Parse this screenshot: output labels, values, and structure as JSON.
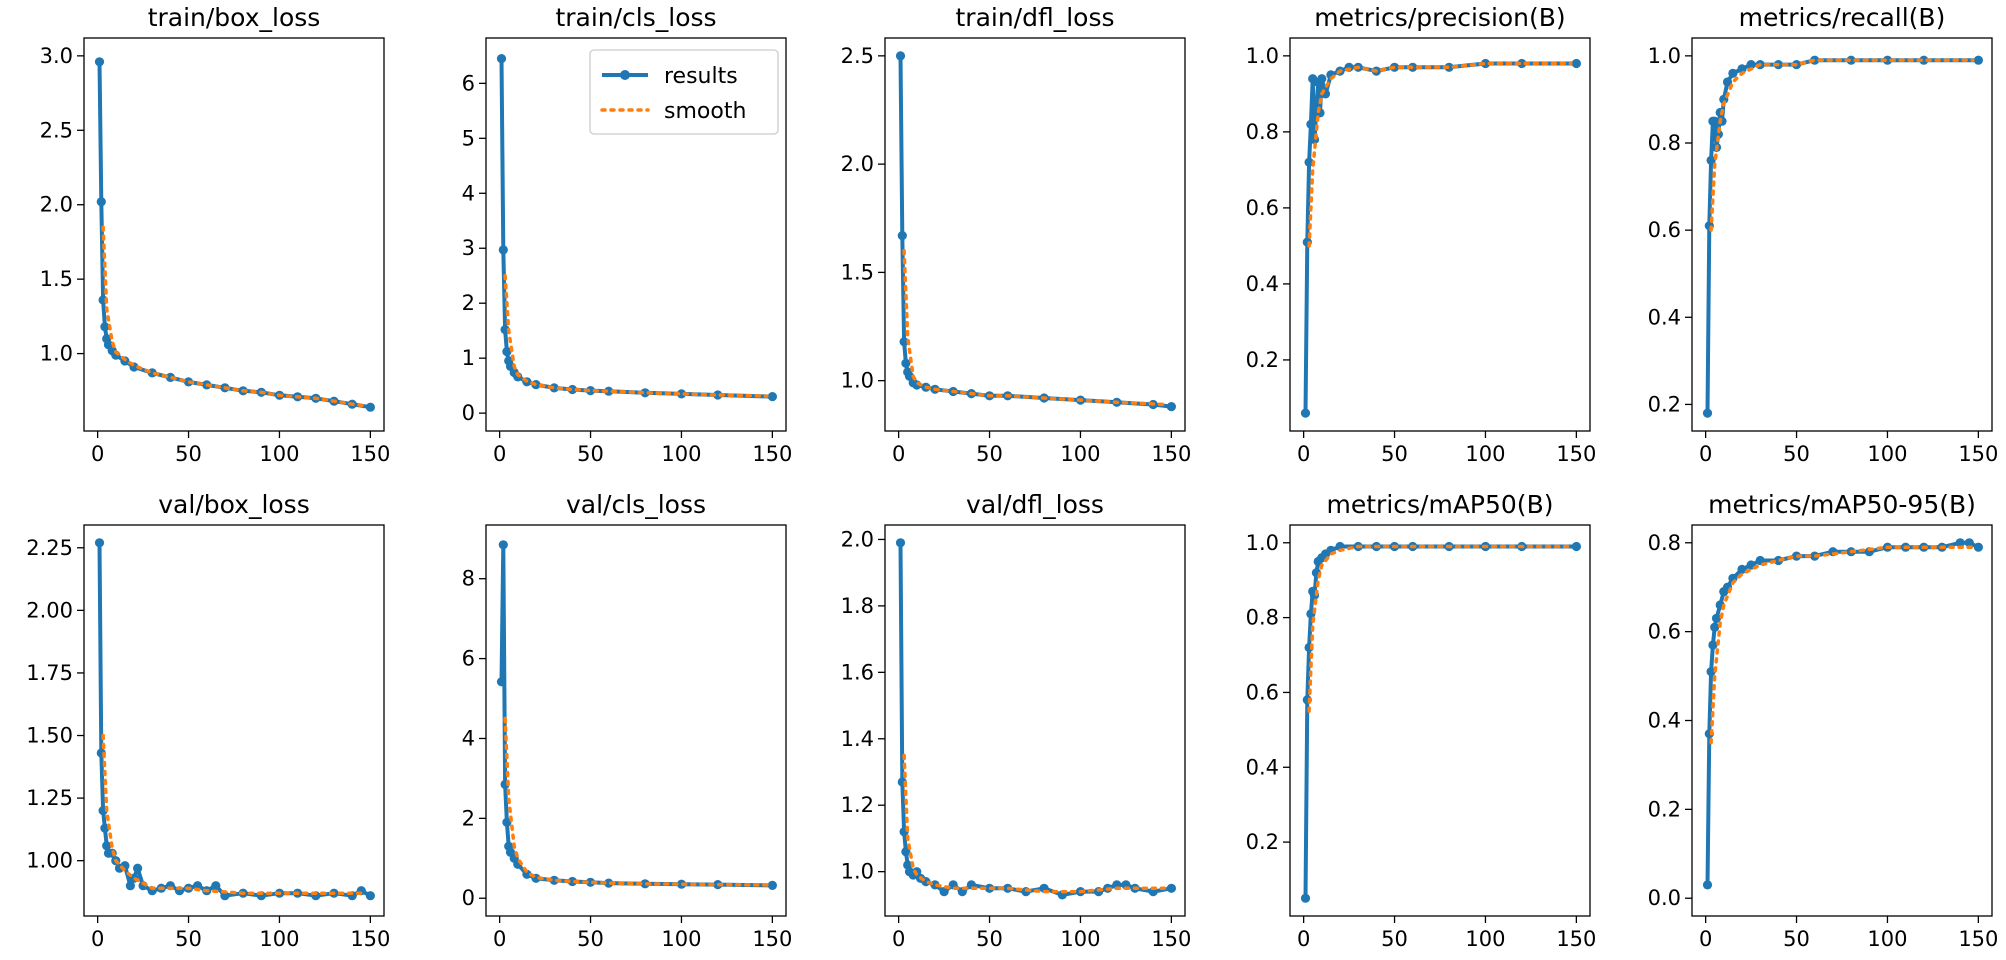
{
  "legend": {
    "entries": [
      {
        "label": "results",
        "color": "#1f77b4",
        "style": "line-with-markers"
      },
      {
        "label": "smooth",
        "color": "#ff7f0e",
        "style": "dotted"
      }
    ],
    "placement": "upper-right of train/cls_loss panel"
  },
  "chart_data": [
    {
      "type": "line",
      "title": "train/box_loss",
      "xlim": [
        0,
        150
      ],
      "ylim": [
        0.6,
        3.0
      ],
      "xticks": [
        0,
        50,
        100,
        150
      ],
      "yticks": [
        1.0,
        1.5,
        2.0,
        2.5,
        3.0
      ],
      "ytick_labels": [
        "1.0",
        "1.5",
        "2.0",
        "2.5",
        "3.0"
      ],
      "series": [
        {
          "name": "results",
          "x": [
            1,
            2,
            3,
            4,
            5,
            6,
            8,
            10,
            15,
            20,
            30,
            40,
            50,
            60,
            70,
            80,
            90,
            100,
            110,
            120,
            130,
            140,
            150
          ],
          "y": [
            2.96,
            2.02,
            1.36,
            1.18,
            1.1,
            1.06,
            1.02,
            0.99,
            0.95,
            0.91,
            0.87,
            0.84,
            0.81,
            0.79,
            0.77,
            0.75,
            0.74,
            0.72,
            0.71,
            0.7,
            0.68,
            0.66,
            0.64
          ]
        },
        {
          "name": "smooth",
          "x": [
            3,
            5,
            8,
            10,
            15,
            20,
            30,
            40,
            50,
            60,
            70,
            80,
            90,
            100,
            110,
            120,
            130,
            140,
            147
          ],
          "y": [
            1.85,
            1.3,
            1.08,
            1.01,
            0.96,
            0.92,
            0.87,
            0.84,
            0.81,
            0.79,
            0.77,
            0.75,
            0.74,
            0.72,
            0.71,
            0.7,
            0.68,
            0.66,
            0.65
          ]
        }
      ]
    },
    {
      "type": "line",
      "title": "train/cls_loss",
      "xlim": [
        0,
        150
      ],
      "ylim": [
        0,
        6.5
      ],
      "xticks": [
        0,
        50,
        100,
        150
      ],
      "yticks": [
        0,
        1,
        2,
        3,
        4,
        5,
        6
      ],
      "ytick_labels": [
        "0",
        "1",
        "2",
        "3",
        "4",
        "5",
        "6"
      ],
      "series": [
        {
          "name": "results",
          "x": [
            1,
            2,
            3,
            4,
            5,
            6,
            8,
            10,
            15,
            20,
            30,
            40,
            50,
            60,
            80,
            100,
            120,
            150
          ],
          "y": [
            6.45,
            2.97,
            1.52,
            1.12,
            0.95,
            0.85,
            0.74,
            0.66,
            0.57,
            0.52,
            0.46,
            0.43,
            0.41,
            0.4,
            0.37,
            0.35,
            0.33,
            0.3
          ]
        },
        {
          "name": "smooth",
          "x": [
            3,
            5,
            8,
            10,
            15,
            20,
            30,
            40,
            50,
            60,
            80,
            100,
            120,
            147
          ],
          "y": [
            2.5,
            1.5,
            0.85,
            0.7,
            0.58,
            0.52,
            0.46,
            0.43,
            0.41,
            0.4,
            0.37,
            0.35,
            0.33,
            0.31
          ]
        }
      ]
    },
    {
      "type": "line",
      "title": "train/dfl_loss",
      "xlim": [
        0,
        150
      ],
      "ylim": [
        0.85,
        2.5
      ],
      "xticks": [
        0,
        50,
        100,
        150
      ],
      "yticks": [
        1.0,
        1.5,
        2.0,
        2.5
      ],
      "ytick_labels": [
        "1.0",
        "1.5",
        "2.0",
        "2.5"
      ],
      "series": [
        {
          "name": "results",
          "x": [
            1,
            2,
            3,
            4,
            5,
            6,
            8,
            10,
            15,
            20,
            30,
            40,
            50,
            60,
            80,
            100,
            120,
            140,
            150
          ],
          "y": [
            2.5,
            1.67,
            1.18,
            1.08,
            1.04,
            1.02,
            0.99,
            0.98,
            0.97,
            0.96,
            0.95,
            0.94,
            0.93,
            0.93,
            0.92,
            0.91,
            0.9,
            0.89,
            0.88
          ]
        },
        {
          "name": "smooth",
          "x": [
            3,
            5,
            8,
            10,
            15,
            20,
            30,
            40,
            50,
            60,
            80,
            100,
            120,
            147
          ],
          "y": [
            1.6,
            1.2,
            1.02,
            0.99,
            0.97,
            0.96,
            0.95,
            0.94,
            0.93,
            0.93,
            0.92,
            0.91,
            0.9,
            0.89
          ]
        }
      ]
    },
    {
      "type": "line",
      "title": "metrics/precision(B)",
      "xlim": [
        0,
        150
      ],
      "ylim": [
        0.06,
        1.0
      ],
      "xticks": [
        0,
        50,
        100,
        150
      ],
      "yticks": [
        0.2,
        0.4,
        0.6,
        0.8,
        1.0
      ],
      "ytick_labels": [
        "0.2",
        "0.4",
        "0.6",
        "0.8",
        "1.0"
      ],
      "series": [
        {
          "name": "results",
          "x": [
            1,
            2,
            3,
            4,
            5,
            6,
            7,
            8,
            9,
            10,
            12,
            15,
            20,
            25,
            30,
            40,
            50,
            60,
            80,
            100,
            120,
            150
          ],
          "y": [
            0.06,
            0.51,
            0.72,
            0.82,
            0.94,
            0.78,
            0.86,
            0.93,
            0.85,
            0.94,
            0.9,
            0.95,
            0.96,
            0.97,
            0.97,
            0.96,
            0.97,
            0.97,
            0.97,
            0.98,
            0.98,
            0.98
          ]
        },
        {
          "name": "smooth",
          "x": [
            3,
            5,
            8,
            10,
            15,
            20,
            30,
            40,
            50,
            60,
            80,
            100,
            120,
            147
          ],
          "y": [
            0.5,
            0.7,
            0.85,
            0.9,
            0.94,
            0.96,
            0.97,
            0.96,
            0.97,
            0.97,
            0.97,
            0.98,
            0.98,
            0.98
          ]
        }
      ]
    },
    {
      "type": "line",
      "title": "metrics/recall(B)",
      "xlim": [
        0,
        150
      ],
      "ylim": [
        0.18,
        1.0
      ],
      "xticks": [
        0,
        50,
        100,
        150
      ],
      "yticks": [
        0.2,
        0.4,
        0.6,
        0.8,
        1.0
      ],
      "ytick_labels": [
        "0.2",
        "0.4",
        "0.6",
        "0.8",
        "1.0"
      ],
      "series": [
        {
          "name": "results",
          "x": [
            1,
            2,
            3,
            4,
            5,
            6,
            7,
            8,
            9,
            10,
            12,
            15,
            20,
            25,
            30,
            40,
            50,
            60,
            80,
            100,
            120,
            150
          ],
          "y": [
            0.18,
            0.61,
            0.76,
            0.85,
            0.85,
            0.79,
            0.82,
            0.87,
            0.85,
            0.9,
            0.94,
            0.96,
            0.97,
            0.98,
            0.98,
            0.98,
            0.98,
            0.99,
            0.99,
            0.99,
            0.99,
            0.99
          ]
        },
        {
          "name": "smooth",
          "x": [
            3,
            5,
            8,
            10,
            15,
            20,
            30,
            40,
            50,
            60,
            80,
            100,
            120,
            147
          ],
          "y": [
            0.6,
            0.75,
            0.85,
            0.89,
            0.94,
            0.96,
            0.98,
            0.98,
            0.98,
            0.99,
            0.99,
            0.99,
            0.99,
            0.99
          ]
        }
      ]
    },
    {
      "type": "line",
      "title": "val/box_loss",
      "xlim": [
        0,
        150
      ],
      "ylim": [
        0.85,
        2.27
      ],
      "xticks": [
        0,
        50,
        100,
        150
      ],
      "yticks": [
        1.0,
        1.25,
        1.5,
        1.75,
        2.0,
        2.25
      ],
      "ytick_labels": [
        "1.00",
        "1.25",
        "1.50",
        "1.75",
        "2.00",
        "2.25"
      ],
      "series": [
        {
          "name": "results",
          "x": [
            1,
            2,
            3,
            4,
            5,
            6,
            8,
            10,
            12,
            15,
            18,
            20,
            22,
            25,
            30,
            35,
            40,
            45,
            50,
            55,
            60,
            65,
            70,
            80,
            90,
            100,
            110,
            120,
            130,
            140,
            145,
            150
          ],
          "y": [
            2.27,
            1.43,
            1.2,
            1.13,
            1.06,
            1.03,
            1.03,
            1.0,
            0.97,
            0.98,
            0.9,
            0.93,
            0.97,
            0.9,
            0.88,
            0.89,
            0.9,
            0.88,
            0.89,
            0.9,
            0.88,
            0.9,
            0.86,
            0.87,
            0.86,
            0.87,
            0.87,
            0.86,
            0.87,
            0.86,
            0.88,
            0.86
          ]
        },
        {
          "name": "smooth",
          "x": [
            3,
            5,
            8,
            10,
            15,
            20,
            30,
            40,
            50,
            60,
            80,
            100,
            120,
            147
          ],
          "y": [
            1.5,
            1.2,
            1.05,
            1.0,
            0.96,
            0.93,
            0.89,
            0.89,
            0.89,
            0.88,
            0.87,
            0.87,
            0.87,
            0.87
          ]
        }
      ]
    },
    {
      "type": "line",
      "title": "val/cls_loss",
      "xlim": [
        0,
        150
      ],
      "ylim": [
        0,
        8.9
      ],
      "xticks": [
        0,
        50,
        100,
        150
      ],
      "yticks": [
        0,
        2,
        4,
        6,
        8
      ],
      "ytick_labels": [
        "0",
        "2",
        "4",
        "6",
        "8"
      ],
      "series": [
        {
          "name": "results",
          "x": [
            1,
            2,
            3,
            4,
            5,
            6,
            8,
            10,
            15,
            20,
            30,
            40,
            50,
            60,
            80,
            100,
            120,
            150
          ],
          "y": [
            5.42,
            8.85,
            2.85,
            1.9,
            1.3,
            1.15,
            1.0,
            0.85,
            0.6,
            0.5,
            0.45,
            0.42,
            0.4,
            0.38,
            0.36,
            0.35,
            0.34,
            0.32
          ]
        },
        {
          "name": "smooth",
          "x": [
            3,
            5,
            8,
            10,
            15,
            20,
            30,
            40,
            50,
            60,
            80,
            100,
            120,
            147
          ],
          "y": [
            4.5,
            2.5,
            1.3,
            1.0,
            0.65,
            0.52,
            0.45,
            0.42,
            0.4,
            0.38,
            0.36,
            0.35,
            0.34,
            0.33
          ]
        }
      ]
    },
    {
      "type": "line",
      "title": "val/dfl_loss",
      "xlim": [
        0,
        150
      ],
      "ylim": [
        0.92,
        1.99
      ],
      "xticks": [
        0,
        50,
        100,
        150
      ],
      "yticks": [
        1.0,
        1.2,
        1.4,
        1.6,
        1.8,
        2.0
      ],
      "ytick_labels": [
        "1.0",
        "1.2",
        "1.4",
        "1.6",
        "1.8",
        "2.0"
      ],
      "series": [
        {
          "name": "results",
          "x": [
            1,
            2,
            3,
            4,
            5,
            6,
            8,
            10,
            12,
            15,
            20,
            25,
            30,
            35,
            40,
            50,
            60,
            70,
            80,
            90,
            100,
            110,
            115,
            120,
            125,
            130,
            140,
            150
          ],
          "y": [
            1.99,
            1.27,
            1.12,
            1.06,
            1.02,
            1.0,
            0.99,
            1.0,
            0.98,
            0.97,
            0.96,
            0.94,
            0.96,
            0.94,
            0.96,
            0.95,
            0.95,
            0.94,
            0.95,
            0.93,
            0.94,
            0.94,
            0.95,
            0.96,
            0.96,
            0.95,
            0.94,
            0.95
          ]
        },
        {
          "name": "smooth",
          "x": [
            3,
            5,
            8,
            10,
            15,
            20,
            30,
            40,
            50,
            60,
            80,
            100,
            120,
            147
          ],
          "y": [
            1.35,
            1.1,
            1.01,
            0.99,
            0.97,
            0.96,
            0.95,
            0.95,
            0.95,
            0.95,
            0.94,
            0.94,
            0.95,
            0.95
          ]
        }
      ]
    },
    {
      "type": "line",
      "title": "metrics/mAP50(B)",
      "xlim": [
        0,
        150
      ],
      "ylim": [
        0.05,
        1.0
      ],
      "xticks": [
        0,
        50,
        100,
        150
      ],
      "yticks": [
        0.2,
        0.4,
        0.6,
        0.8,
        1.0
      ],
      "ytick_labels": [
        "0.2",
        "0.4",
        "0.6",
        "0.8",
        "1.0"
      ],
      "series": [
        {
          "name": "results",
          "x": [
            1,
            2,
            3,
            4,
            5,
            6,
            7,
            8,
            10,
            12,
            15,
            20,
            30,
            40,
            50,
            60,
            80,
            100,
            120,
            150
          ],
          "y": [
            0.05,
            0.58,
            0.72,
            0.81,
            0.87,
            0.86,
            0.92,
            0.95,
            0.96,
            0.97,
            0.98,
            0.99,
            0.99,
            0.99,
            0.99,
            0.99,
            0.99,
            0.99,
            0.99,
            0.99
          ]
        },
        {
          "name": "smooth",
          "x": [
            3,
            5,
            8,
            10,
            15,
            20,
            30,
            50,
            80,
            100,
            120,
            147
          ],
          "y": [
            0.55,
            0.78,
            0.9,
            0.94,
            0.97,
            0.98,
            0.99,
            0.99,
            0.99,
            0.99,
            0.99,
            0.99
          ]
        }
      ]
    },
    {
      "type": "line",
      "title": "metrics/mAP50-95(B)",
      "xlim": [
        0,
        150
      ],
      "ylim": [
        0.0,
        0.8
      ],
      "xticks": [
        0,
        50,
        100,
        150
      ],
      "yticks": [
        0.0,
        0.2,
        0.4,
        0.6,
        0.8
      ],
      "ytick_labels": [
        "0.0",
        "0.2",
        "0.4",
        "0.6",
        "0.8"
      ],
      "series": [
        {
          "name": "results",
          "x": [
            1,
            2,
            3,
            4,
            5,
            6,
            8,
            10,
            12,
            15,
            20,
            25,
            30,
            40,
            50,
            60,
            70,
            80,
            90,
            100,
            110,
            120,
            130,
            140,
            145,
            150
          ],
          "y": [
            0.03,
            0.37,
            0.51,
            0.57,
            0.61,
            0.63,
            0.66,
            0.69,
            0.7,
            0.72,
            0.74,
            0.75,
            0.76,
            0.76,
            0.77,
            0.77,
            0.78,
            0.78,
            0.78,
            0.79,
            0.79,
            0.79,
            0.79,
            0.8,
            0.8,
            0.79
          ]
        },
        {
          "name": "smooth",
          "x": [
            3,
            5,
            8,
            10,
            15,
            20,
            30,
            40,
            50,
            60,
            80,
            100,
            120,
            147
          ],
          "y": [
            0.35,
            0.5,
            0.62,
            0.66,
            0.71,
            0.73,
            0.75,
            0.76,
            0.77,
            0.77,
            0.78,
            0.79,
            0.79,
            0.79
          ]
        }
      ]
    }
  ]
}
